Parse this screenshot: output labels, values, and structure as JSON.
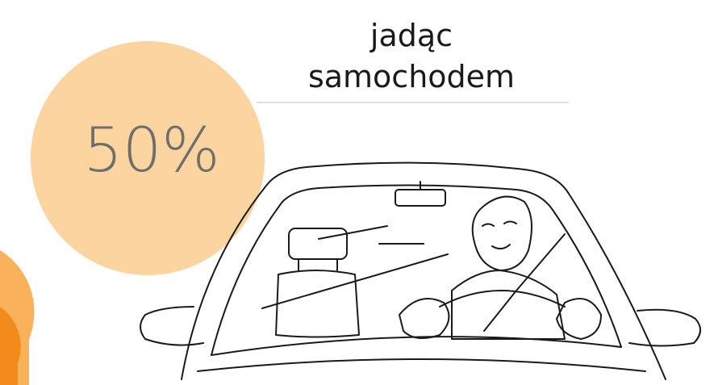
{
  "stat": {
    "label": "50%"
  },
  "caption": {
    "lines": [
      "jadąc",
      "samochodem"
    ]
  }
}
